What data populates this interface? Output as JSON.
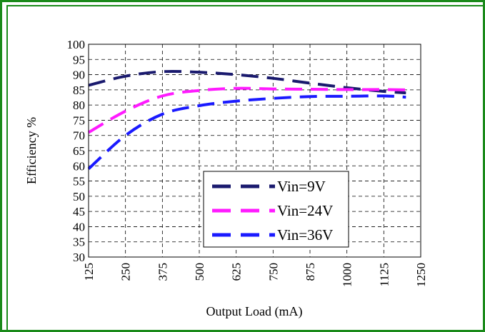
{
  "colors": {
    "frame": "#1a8a1a",
    "grid": "#000000"
  },
  "chart_data": {
    "type": "line",
    "title": "",
    "xlabel": "Output Load (mA)",
    "ylabel": "Efficiency %",
    "xlim": [
      125,
      1250
    ],
    "ylim": [
      30,
      100
    ],
    "x_ticks": [
      "125",
      "250",
      "375",
      "500",
      "625",
      "750",
      "875",
      "1000",
      "1125",
      "1250"
    ],
    "y_ticks": [
      "100",
      "95",
      "90",
      "85",
      "80",
      "75",
      "70",
      "65",
      "60",
      "55",
      "50",
      "45",
      "40",
      "35",
      "30"
    ],
    "grid": true,
    "legend_position": "bottom-center",
    "series": [
      {
        "name": "Vin=9V",
        "color": "#1a1a6e",
        "x": [
          125,
          250,
          375,
          500,
          625,
          750,
          875,
          1000,
          1125,
          1200
        ],
        "y": [
          86.5,
          89.5,
          91,
          90.8,
          90,
          88.8,
          87.2,
          85.7,
          84.5,
          84
        ]
      },
      {
        "name": "Vin=24V",
        "color": "#ff1aff",
        "x": [
          125,
          250,
          375,
          500,
          625,
          750,
          875,
          1000,
          1125,
          1200
        ],
        "y": [
          71,
          78,
          83,
          84.8,
          85.5,
          85.3,
          85.2,
          85.1,
          85.1,
          85
        ]
      },
      {
        "name": "Vin=36V",
        "color": "#1a1aff",
        "x": [
          125,
          250,
          375,
          500,
          625,
          750,
          875,
          1000,
          1125,
          1200
        ],
        "y": [
          59,
          70,
          77,
          79.8,
          81.3,
          82.2,
          82.8,
          82.9,
          83,
          82.6
        ]
      }
    ]
  }
}
